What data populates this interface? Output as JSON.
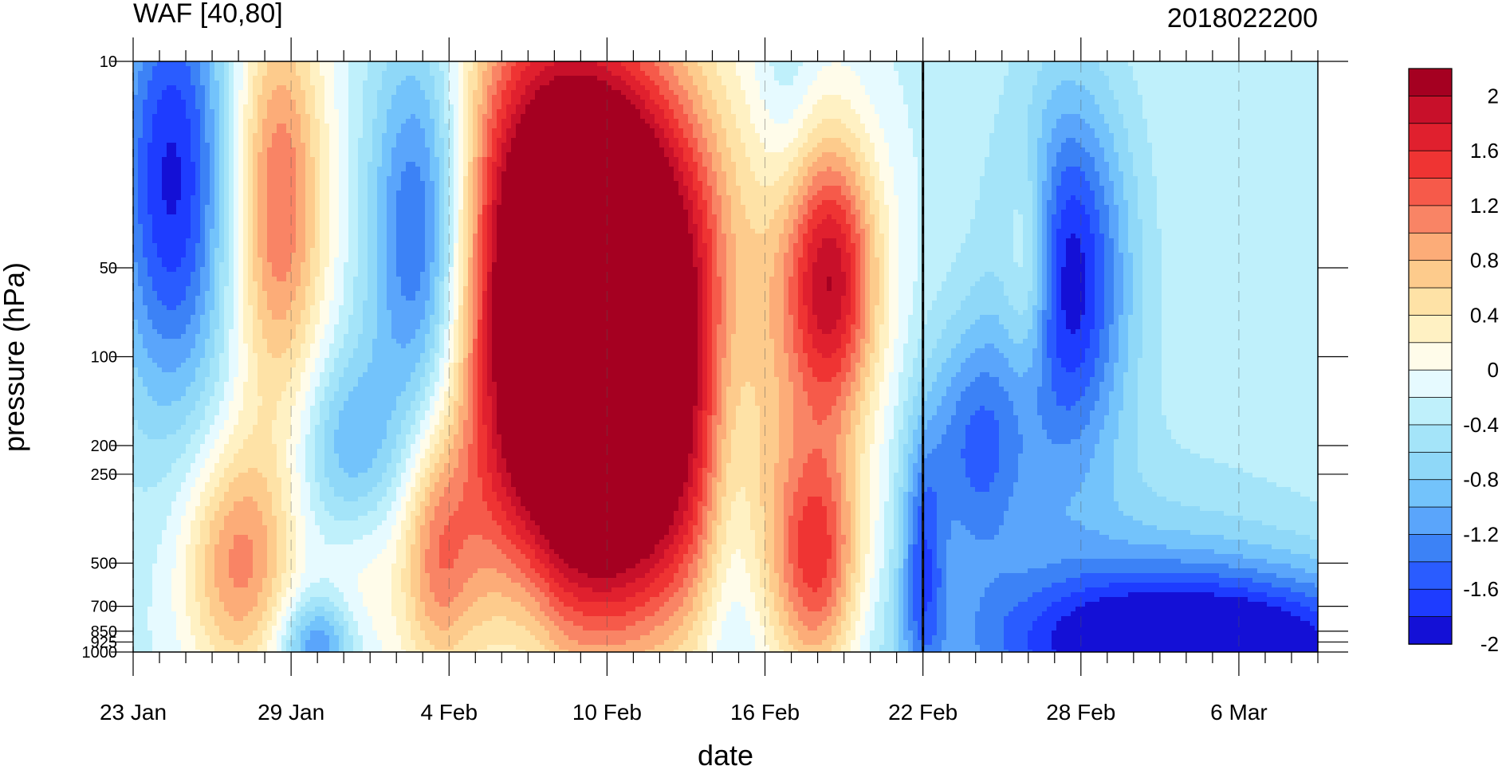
{
  "chart_data": {
    "type": "heatmap",
    "title": "WAF [40,80]",
    "subtitle": "2018022200",
    "xlabel": "date",
    "ylabel": "pressure (hPa)",
    "x_tick_labels": [
      "23 Jan",
      "29 Jan",
      "4 Feb",
      "10 Feb",
      "16 Feb",
      "22 Feb",
      "28 Feb",
      "6 Mar"
    ],
    "x_tick_days": [
      0,
      6,
      12,
      18,
      24,
      30,
      36,
      42
    ],
    "x_range_days": [
      0,
      45
    ],
    "marked_day": 30,
    "y_scale": "log",
    "y_inverted": true,
    "y_tick_labels": [
      "10",
      "50",
      "100",
      "200",
      "250",
      "500",
      "700",
      "850",
      "925",
      "1000"
    ],
    "y_tick_values": [
      10,
      50,
      100,
      200,
      250,
      500,
      700,
      850,
      925,
      1000
    ],
    "y_range": [
      10,
      1000
    ],
    "colorbar": {
      "labels": [
        "2",
        "1.6",
        "1.2",
        "0.8",
        "0.4",
        "0",
        "-0.4",
        "-0.8",
        "-1.2",
        "-1.6",
        "-2"
      ],
      "levels": [
        -2.2,
        -2.0,
        -1.8,
        -1.6,
        -1.4,
        -1.2,
        -1.0,
        -0.8,
        -0.6,
        -0.4,
        -0.2,
        0.0,
        0.2,
        0.4,
        0.6,
        0.8,
        1.0,
        1.2,
        1.4,
        1.6,
        1.8,
        2.0
      ],
      "colors": [
        "#1410d6",
        "#1e3cff",
        "#2a5cff",
        "#3c82f6",
        "#5aa5fb",
        "#73c3fb",
        "#8fd8f8",
        "#a4e4f9",
        "#bff0fb",
        "#e6faff",
        "#fffcea",
        "#fff1c3",
        "#fee2a6",
        "#fdcb8c",
        "#fcac78",
        "#f98465",
        "#f65a4a",
        "#ef3433",
        "#e0202e",
        "#c8102a",
        "#a50021"
      ]
    },
    "features": [
      {
        "day": 1.5,
        "p": 25,
        "v": -1.6,
        "sd": 1.6,
        "sp": 0.55
      },
      {
        "day": 5.5,
        "p": 30,
        "v": 1.5,
        "sd": 1.3,
        "sp": 0.5
      },
      {
        "day": 4.0,
        "p": 500,
        "v": 1.3,
        "sd": 1.5,
        "sp": 0.3
      },
      {
        "day": 8.5,
        "p": 450,
        "v": 0.5,
        "sd": 1.1,
        "sp": 0.3
      },
      {
        "day": 7.0,
        "p": 950,
        "v": -1.1,
        "sd": 1.0,
        "sp": 0.12
      },
      {
        "day": 8.3,
        "p": 220,
        "v": -1.0,
        "sd": 1.3,
        "sp": 0.25
      },
      {
        "day": 11.0,
        "p": 40,
        "v": -1.7,
        "sd": 1.4,
        "sp": 0.5
      },
      {
        "day": 11.5,
        "p": 480,
        "v": 1.0,
        "sd": 1.0,
        "sp": 0.3
      },
      {
        "day": 15.5,
        "p": 30,
        "v": 1.2,
        "sd": 2.8,
        "sp": 0.75
      },
      {
        "day": 18.0,
        "p": 60,
        "v": 3.5,
        "sd": 3.3,
        "sp": 0.55
      },
      {
        "day": 18.0,
        "p": 350,
        "v": 1.5,
        "sd": 3.8,
        "sp": 0.4
      },
      {
        "day": 15.0,
        "p": 650,
        "v": -0.3,
        "sd": 1.0,
        "sp": 0.3
      },
      {
        "day": 22.7,
        "p": 300,
        "v": -0.6,
        "sd": 0.8,
        "sp": 0.6
      },
      {
        "day": 26.5,
        "p": 55,
        "v": 2.1,
        "sd": 1.3,
        "sp": 0.35
      },
      {
        "day": 26.0,
        "p": 500,
        "v": 1.6,
        "sd": 1.2,
        "sp": 0.3
      },
      {
        "day": 24.8,
        "p": 12,
        "v": -0.3,
        "sd": 0.8,
        "sp": 0.3
      },
      {
        "day": 30.0,
        "p": 500,
        "v": -1.0,
        "sd": 0.6,
        "sp": 0.3
      },
      {
        "day": 32.0,
        "p": 200,
        "v": -1.1,
        "sd": 1.4,
        "sp": 0.3
      },
      {
        "day": 34.0,
        "p": 50,
        "v": 0.9,
        "sd": 0.7,
        "sp": 0.28
      },
      {
        "day": 35.5,
        "p": 55,
        "v": -1.7,
        "sd": 1.6,
        "sp": 0.45
      },
      {
        "day": 41.0,
        "p": 950,
        "v": -1.7,
        "sd": 6.0,
        "sp": 0.18
      },
      {
        "day": 38.0,
        "p": 800,
        "v": -0.6,
        "sd": 5.0,
        "sp": 0.35
      }
    ],
    "background_value": -0.45
  }
}
